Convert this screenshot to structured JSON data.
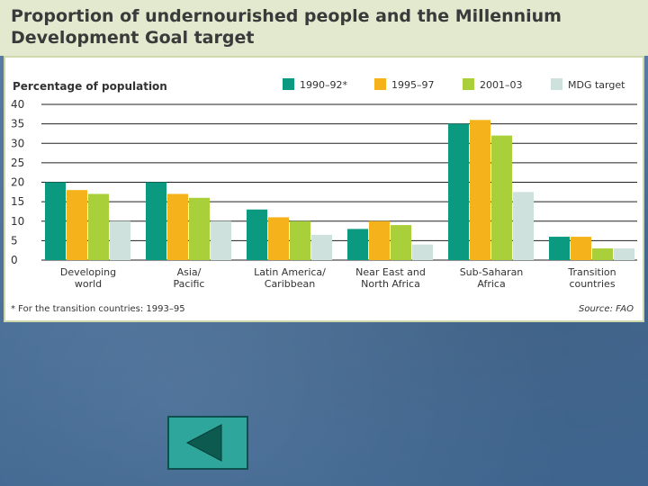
{
  "slide": {
    "back_button_icon": "triangle-left-icon"
  },
  "chart_data": {
    "type": "bar",
    "title": "Proportion of undernourished people and the Millennium Development Goal target",
    "ylabel": "Percentage of population",
    "xlabel": "",
    "ylim": [
      0,
      40
    ],
    "yticks": [
      0,
      5,
      10,
      15,
      20,
      25,
      30,
      35,
      40
    ],
    "grid": true,
    "legend_position": "top-right",
    "categories": [
      [
        "Developing",
        "world"
      ],
      [
        "Asia/",
        "Pacific"
      ],
      [
        "Latin America/",
        "Caribbean"
      ],
      [
        "Near East and",
        "North Africa"
      ],
      [
        "Sub-Saharan",
        "Africa"
      ],
      [
        "Transition",
        "countries"
      ]
    ],
    "series": [
      {
        "name": "1990–92*",
        "color": "#0b9a80",
        "values": [
          20,
          20,
          13,
          8,
          35,
          6
        ]
      },
      {
        "name": "1995–97",
        "color": "#f5b21b",
        "values": [
          18,
          17,
          11,
          10,
          36,
          6
        ]
      },
      {
        "name": "2001–03",
        "color": "#a9cf3a",
        "values": [
          17,
          16,
          10,
          9,
          32,
          3
        ]
      },
      {
        "name": "MDG target",
        "color": "#cfe1dc",
        "values": [
          10,
          10,
          6.5,
          4,
          17.5,
          3
        ]
      }
    ],
    "footnote": "* For the transition countries: 1993–95",
    "source": "Source: FAO"
  }
}
